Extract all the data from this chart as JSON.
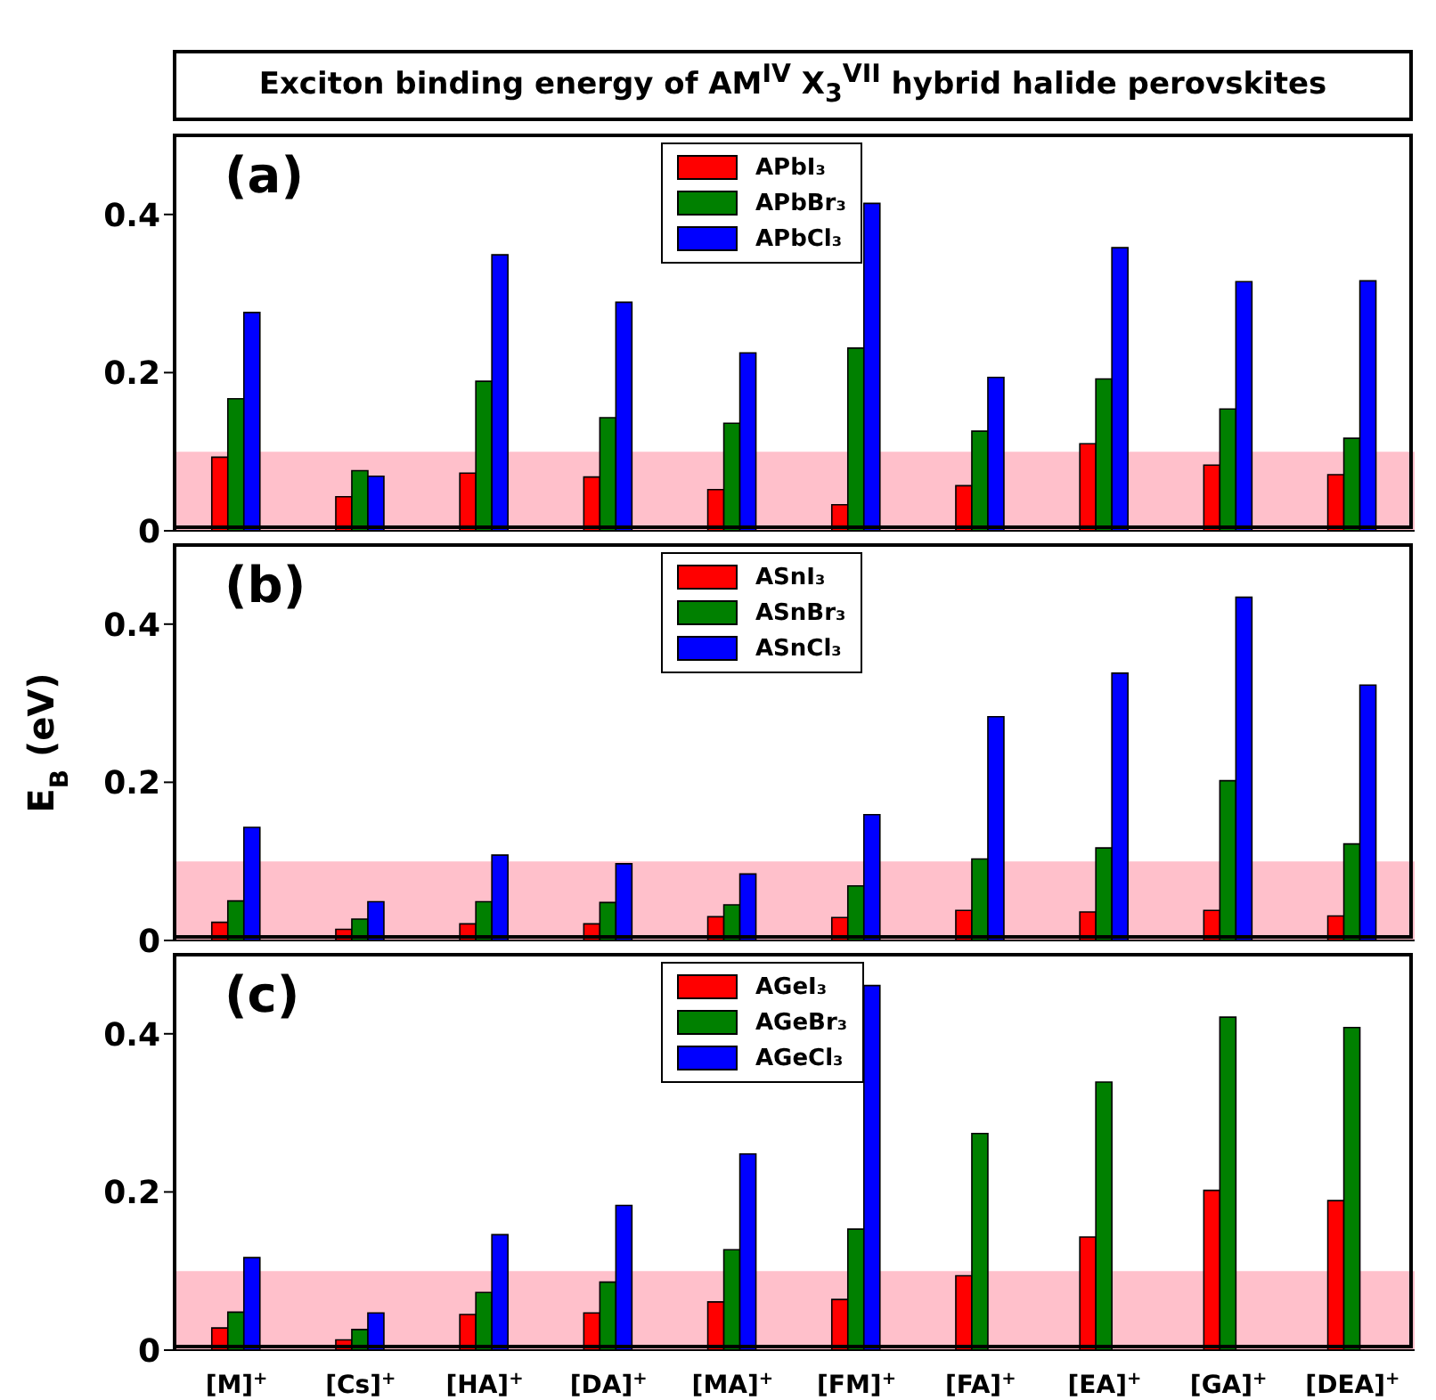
{
  "chart_data": [
    {
      "type": "bar",
      "title": "Exciton binding energy of AM$^{IV}$ X$_{3}$$^{VII}$ hybrid halide perovskites",
      "annotations": [
        "(a)"
      ],
      "categories": [
        null,
        null,
        null,
        null,
        null,
        null,
        null,
        null,
        null,
        null
      ],
      "series": [
        {
          "name": "APbI₃",
          "color": "#ff0000",
          "values": [
            0.093,
            0.043,
            0.073,
            0.068,
            0.052,
            0.033,
            0.057,
            0.11,
            0.083,
            0.071
          ]
        },
        {
          "name": "APbBr₃",
          "color": "#008000",
          "values": [
            0.167,
            0.076,
            0.189,
            0.143,
            0.136,
            0.231,
            0.126,
            0.192,
            0.154,
            0.117
          ]
        },
        {
          "name": "APbCl₃",
          "color": "#0000ff",
          "values": [
            0.276,
            0.069,
            0.349,
            0.289,
            0.225,
            0.414,
            0.194,
            0.358,
            0.315,
            0.316
          ]
        }
      ],
      "ylim": [
        0,
        0.5
      ],
      "yticks": [
        0,
        0.2,
        0.4
      ],
      "bands": [
        {
          "axis": "y",
          "from": 0,
          "to": 0.1,
          "color": "#ffc0cb"
        }
      ],
      "legend": "top",
      "tick_labels": "y"
    },
    {
      "type": "bar",
      "ylabel": "E$_{B}$ (eV)",
      "annotations": [
        "(b)"
      ],
      "categories": [
        null,
        null,
        null,
        null,
        null,
        null,
        null,
        null,
        null,
        null
      ],
      "series": [
        {
          "name": "ASnI₃",
          "color": "#ff0000",
          "values": [
            0.023,
            0.014,
            0.021,
            0.021,
            0.03,
            0.029,
            0.038,
            0.036,
            0.038,
            0.031
          ]
        },
        {
          "name": "ASnBr₃",
          "color": "#008000",
          "values": [
            0.05,
            0.027,
            0.049,
            0.048,
            0.045,
            0.069,
            0.103,
            0.117,
            0.202,
            0.122
          ]
        },
        {
          "name": "ASnCl₃",
          "color": "#0000ff",
          "values": [
            0.143,
            0.049,
            0.108,
            0.097,
            0.084,
            0.159,
            0.283,
            0.338,
            0.434,
            0.323
          ]
        }
      ],
      "ylim": [
        0,
        0.5
      ],
      "yticks": [
        0,
        0.2,
        0.4
      ],
      "bands": [
        {
          "axis": "y",
          "from": 0,
          "to": 0.1,
          "color": "#ffc0cb"
        }
      ],
      "legend": "top",
      "tick_labels": "y"
    },
    {
      "type": "bar",
      "annotations": [
        "(c)"
      ],
      "categories": [
        "[M]$^{+}$",
        "[Cs]$^{+}$",
        "[HA]$^{+}$",
        "[DA]$^{+}$",
        "[MA]$^{+}$",
        "[FM]$^{+}$",
        "[FA]$^{+}$",
        "[EA]$^{+}$",
        "[GA]$^{+}$",
        "[DEA]$^{+}$"
      ],
      "series": [
        {
          "name": "AGeI₃",
          "color": "#ff0000",
          "values": [
            0.028,
            0.013,
            0.045,
            0.047,
            0.061,
            0.064,
            0.094,
            0.143,
            0.202,
            0.189
          ]
        },
        {
          "name": "AGeBr₃",
          "color": "#008000",
          "values": [
            0.048,
            0.026,
            0.073,
            0.086,
            0.127,
            0.153,
            0.274,
            0.339,
            0.421,
            0.408
          ]
        },
        {
          "name": "AGeCl₃",
          "color": "#0000ff",
          "values": [
            0.117,
            0.047,
            0.146,
            0.183,
            0.248,
            0.461,
            null,
            null,
            null,
            null
          ]
        }
      ],
      "ylim": [
        0,
        0.5
      ],
      "yticks": [
        0,
        0.2,
        0.4
      ],
      "bands": [
        {
          "axis": "y",
          "from": 0,
          "to": 0.1,
          "color": "#ffc0cb"
        }
      ],
      "legend": "top"
    }
  ]
}
